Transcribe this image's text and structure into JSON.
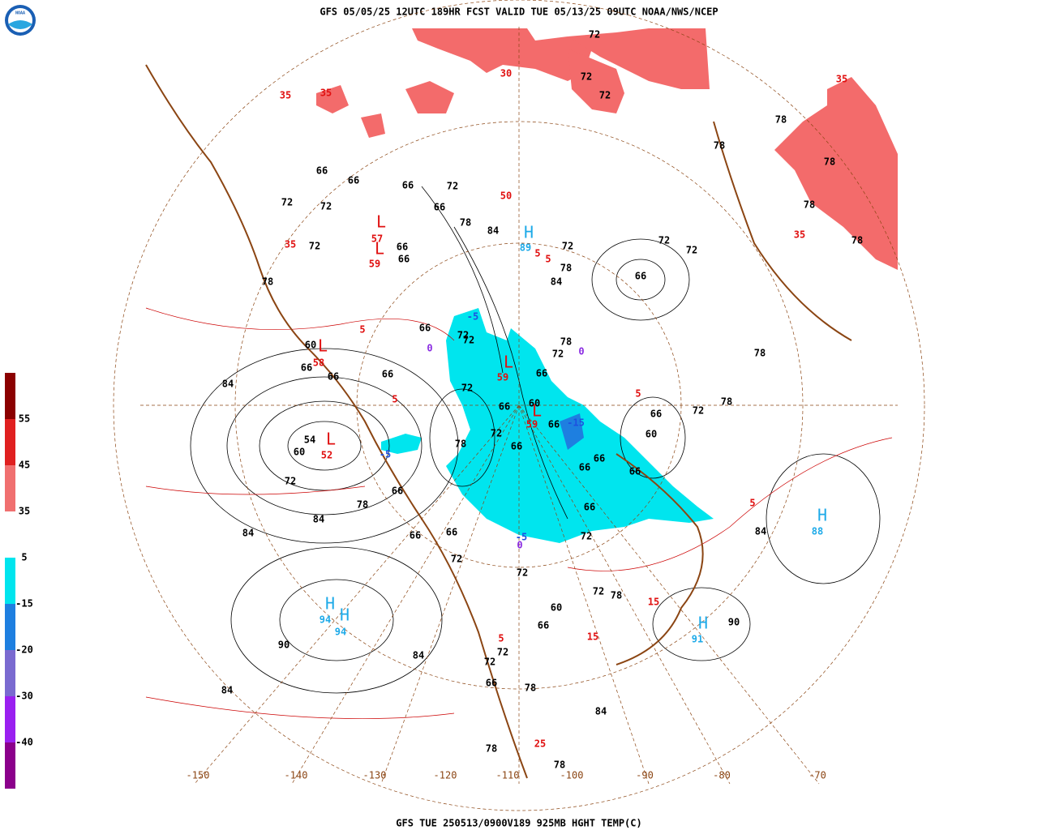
{
  "header": {
    "title": "GFS 05/05/25 12UTC 189HR FCST VALID TUE 05/13/25 09UTC NOAA/NWS/NCEP",
    "logo": "NOAA"
  },
  "footer": {
    "caption": "GFS TUE 250513/0900V189 925MB HGHT TEMP(C)"
  },
  "legend": {
    "colors": [
      "#8b0000",
      "#e02020",
      "#f07070",
      "#ffffff",
      "#00e5ee",
      "#1e7fe0",
      "#7a6ad0",
      "#9a20f0",
      "#8b008b"
    ],
    "labels": [
      "55",
      "45",
      "35",
      "5",
      "-15",
      "-20",
      "-30",
      "-40"
    ]
  },
  "longitudes": [
    "-150",
    "-140",
    "-130",
    "-120",
    "-110",
    "-100",
    "-90",
    "-80",
    "-70"
  ],
  "centers": [
    {
      "symbol": "H",
      "value": "89"
    },
    {
      "symbol": "L",
      "value": "57"
    },
    {
      "symbol": "L",
      "value": "59"
    },
    {
      "symbol": "L",
      "value": "58"
    },
    {
      "symbol": "L",
      "value": "59"
    },
    {
      "symbol": "L",
      "value": "59"
    },
    {
      "symbol": "L",
      "value": "52"
    },
    {
      "symbol": "H",
      "value": "88"
    },
    {
      "symbol": "H",
      "value": "94"
    },
    {
      "symbol": "H",
      "value": "94"
    },
    {
      "symbol": "H",
      "value": "91"
    }
  ],
  "height_labels": [
    "72",
    "72",
    "72",
    "78",
    "78",
    "78",
    "78",
    "78",
    "72",
    "72",
    "66",
    "84",
    "78",
    "72",
    "84",
    "78",
    "72",
    "66",
    "66",
    "66",
    "66",
    "72",
    "72",
    "66",
    "66",
    "72",
    "78",
    "66",
    "72",
    "66",
    "66",
    "66",
    "60",
    "84",
    "54",
    "60",
    "72",
    "78",
    "84",
    "84",
    "66",
    "66",
    "66",
    "72",
    "78",
    "72",
    "66",
    "66",
    "60",
    "66",
    "66",
    "66",
    "66",
    "72",
    "66",
    "60",
    "66",
    "72",
    "78",
    "78",
    "84",
    "78",
    "72",
    "66",
    "72",
    "60",
    "66",
    "72",
    "78",
    "72",
    "72",
    "66",
    "78",
    "84",
    "90",
    "90",
    "84",
    "84",
    "78",
    "78",
    "72",
    "72"
  ],
  "temp_labels": [
    "35",
    "35",
    "35",
    "35",
    "35",
    "5",
    "5",
    "5",
    "5",
    "5",
    "5",
    "15",
    "15",
    "25",
    "5",
    "30",
    "50"
  ],
  "cold_labels": [
    "-5",
    "-5",
    "-5",
    "-15",
    "0",
    "0",
    "0"
  ]
}
